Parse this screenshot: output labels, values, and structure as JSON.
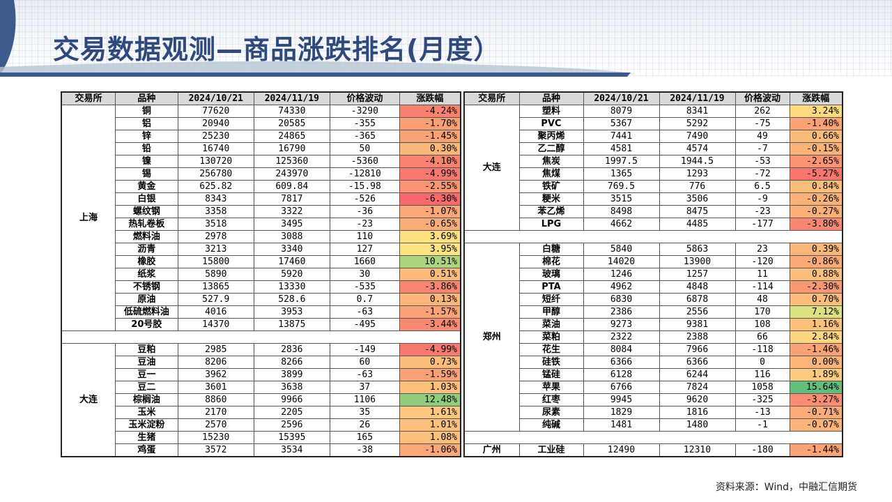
{
  "title": "交易数据观测—商品涨跌排名(月度）",
  "source": "资料来源：Wind，中融汇信期货",
  "headers": [
    "交易所",
    "品种",
    "2024/10/21",
    "2024/11/19",
    "价格波动",
    "涨跌幅"
  ],
  "left_groups": [
    {
      "exchange": "上海",
      "rows": [
        [
          "铜",
          "77620",
          "74330",
          "-3290",
          "-4.24%"
        ],
        [
          "铝",
          "20940",
          "20585",
          "-355",
          "-1.70%"
        ],
        [
          "锌",
          "25230",
          "24865",
          "-365",
          "-1.45%"
        ],
        [
          "铅",
          "16740",
          "16790",
          "50",
          "0.30%"
        ],
        [
          "镍",
          "130720",
          "125360",
          "-5360",
          "-4.10%"
        ],
        [
          "锡",
          "256780",
          "243970",
          "-12810",
          "-4.99%"
        ],
        [
          "黄金",
          "625.82",
          "609.84",
          "-15.98",
          "-2.55%"
        ],
        [
          "白银",
          "8343",
          "7817",
          "-526",
          "-6.30%"
        ],
        [
          "螺纹钢",
          "3358",
          "3322",
          "-36",
          "-1.07%"
        ],
        [
          "热轧卷板",
          "3518",
          "3495",
          "-23",
          "-0.65%"
        ],
        [
          "燃料油",
          "2978",
          "3088",
          "110",
          "3.69%"
        ],
        [
          "沥青",
          "3213",
          "3340",
          "127",
          "3.95%"
        ],
        [
          "橡胶",
          "15800",
          "17460",
          "1660",
          "10.51%"
        ],
        [
          "纸浆",
          "5890",
          "5920",
          "30",
          "0.51%"
        ],
        [
          "不锈钢",
          "13865",
          "13330",
          "-535",
          "-3.86%"
        ],
        [
          "原油",
          "527.9",
          "528.6",
          "0.7",
          "0.13%"
        ],
        [
          "低硫燃料油",
          "4016",
          "3953",
          "-63",
          "-1.57%"
        ],
        [
          "20号胶",
          "14370",
          "13875",
          "-495",
          "-3.44%"
        ]
      ]
    },
    {
      "exchange": "大连",
      "rows": [
        [
          "豆粕",
          "2985",
          "2836",
          "-149",
          "-4.99%"
        ],
        [
          "豆油",
          "8206",
          "8266",
          "60",
          "0.73%"
        ],
        [
          "豆一",
          "3962",
          "3899",
          "-63",
          "-1.59%"
        ],
        [
          "豆二",
          "3601",
          "3638",
          "37",
          "1.03%"
        ],
        [
          "棕榈油",
          "8860",
          "9966",
          "1106",
          "12.48%"
        ],
        [
          "玉米",
          "2170",
          "2205",
          "35",
          "1.61%"
        ],
        [
          "玉米淀粉",
          "2570",
          "2596",
          "26",
          "1.01%"
        ],
        [
          "生猪",
          "15230",
          "15395",
          "165",
          "1.08%"
        ],
        [
          "鸡蛋",
          "3572",
          "3534",
          "-38",
          "-1.06%"
        ]
      ]
    }
  ],
  "right_groups": [
    {
      "exchange": "大连",
      "rows": [
        [
          "塑料",
          "8079",
          "8341",
          "262",
          "3.24%"
        ],
        [
          "PVC",
          "5367",
          "5292",
          "-75",
          "-1.40%"
        ],
        [
          "聚丙烯",
          "7441",
          "7490",
          "49",
          "0.66%"
        ],
        [
          "乙二醇",
          "4581",
          "4574",
          "-7",
          "-0.15%"
        ],
        [
          "焦炭",
          "1997.5",
          "1944.5",
          "-53",
          "-2.65%"
        ],
        [
          "焦煤",
          "1365",
          "1293",
          "-72",
          "-5.27%"
        ],
        [
          "铁矿",
          "769.5",
          "776",
          "6.5",
          "0.84%"
        ],
        [
          "粳米",
          "3515",
          "3506",
          "-9",
          "-0.26%"
        ],
        [
          "苯乙烯",
          "8498",
          "8475",
          "-23",
          "-0.27%"
        ],
        [
          "LPG",
          "4662",
          "4485",
          "-177",
          "-3.80%"
        ]
      ]
    },
    {
      "exchange": "郑州",
      "rows": [
        [
          "白糖",
          "5840",
          "5863",
          "23",
          "0.39%"
        ],
        [
          "棉花",
          "14020",
          "13900",
          "-120",
          "-0.86%"
        ],
        [
          "玻璃",
          "1246",
          "1257",
          "11",
          "0.88%"
        ],
        [
          "PTA",
          "4962",
          "4848",
          "-114",
          "-2.30%"
        ],
        [
          "短纤",
          "6830",
          "6878",
          "48",
          "0.70%"
        ],
        [
          "甲醇",
          "2386",
          "2556",
          "170",
          "7.12%"
        ],
        [
          "菜油",
          "9273",
          "9381",
          "108",
          "1.16%"
        ],
        [
          "菜粕",
          "2322",
          "2388",
          "66",
          "2.84%"
        ],
        [
          "花生",
          "8084",
          "7966",
          "-118",
          "-1.46%"
        ],
        [
          "硅铁",
          "6366",
          "6366",
          "0",
          "0.00%"
        ],
        [
          "锰硅",
          "6128",
          "6244",
          "116",
          "1.89%"
        ],
        [
          "苹果",
          "6766",
          "7824",
          "1058",
          "15.64%"
        ],
        [
          "红枣",
          "9945",
          "9620",
          "-325",
          "-3.27%"
        ],
        [
          "尿素",
          "1829",
          "1816",
          "-13",
          "-0.71%"
        ],
        [
          "纯碱",
          "1481",
          "1480",
          "-1",
          "-0.07%"
        ]
      ]
    },
    {
      "exchange": "广州",
      "rows": [
        [
          "工业硅",
          "12490",
          "12310",
          "-180",
          "-1.44%"
        ]
      ]
    }
  ]
}
